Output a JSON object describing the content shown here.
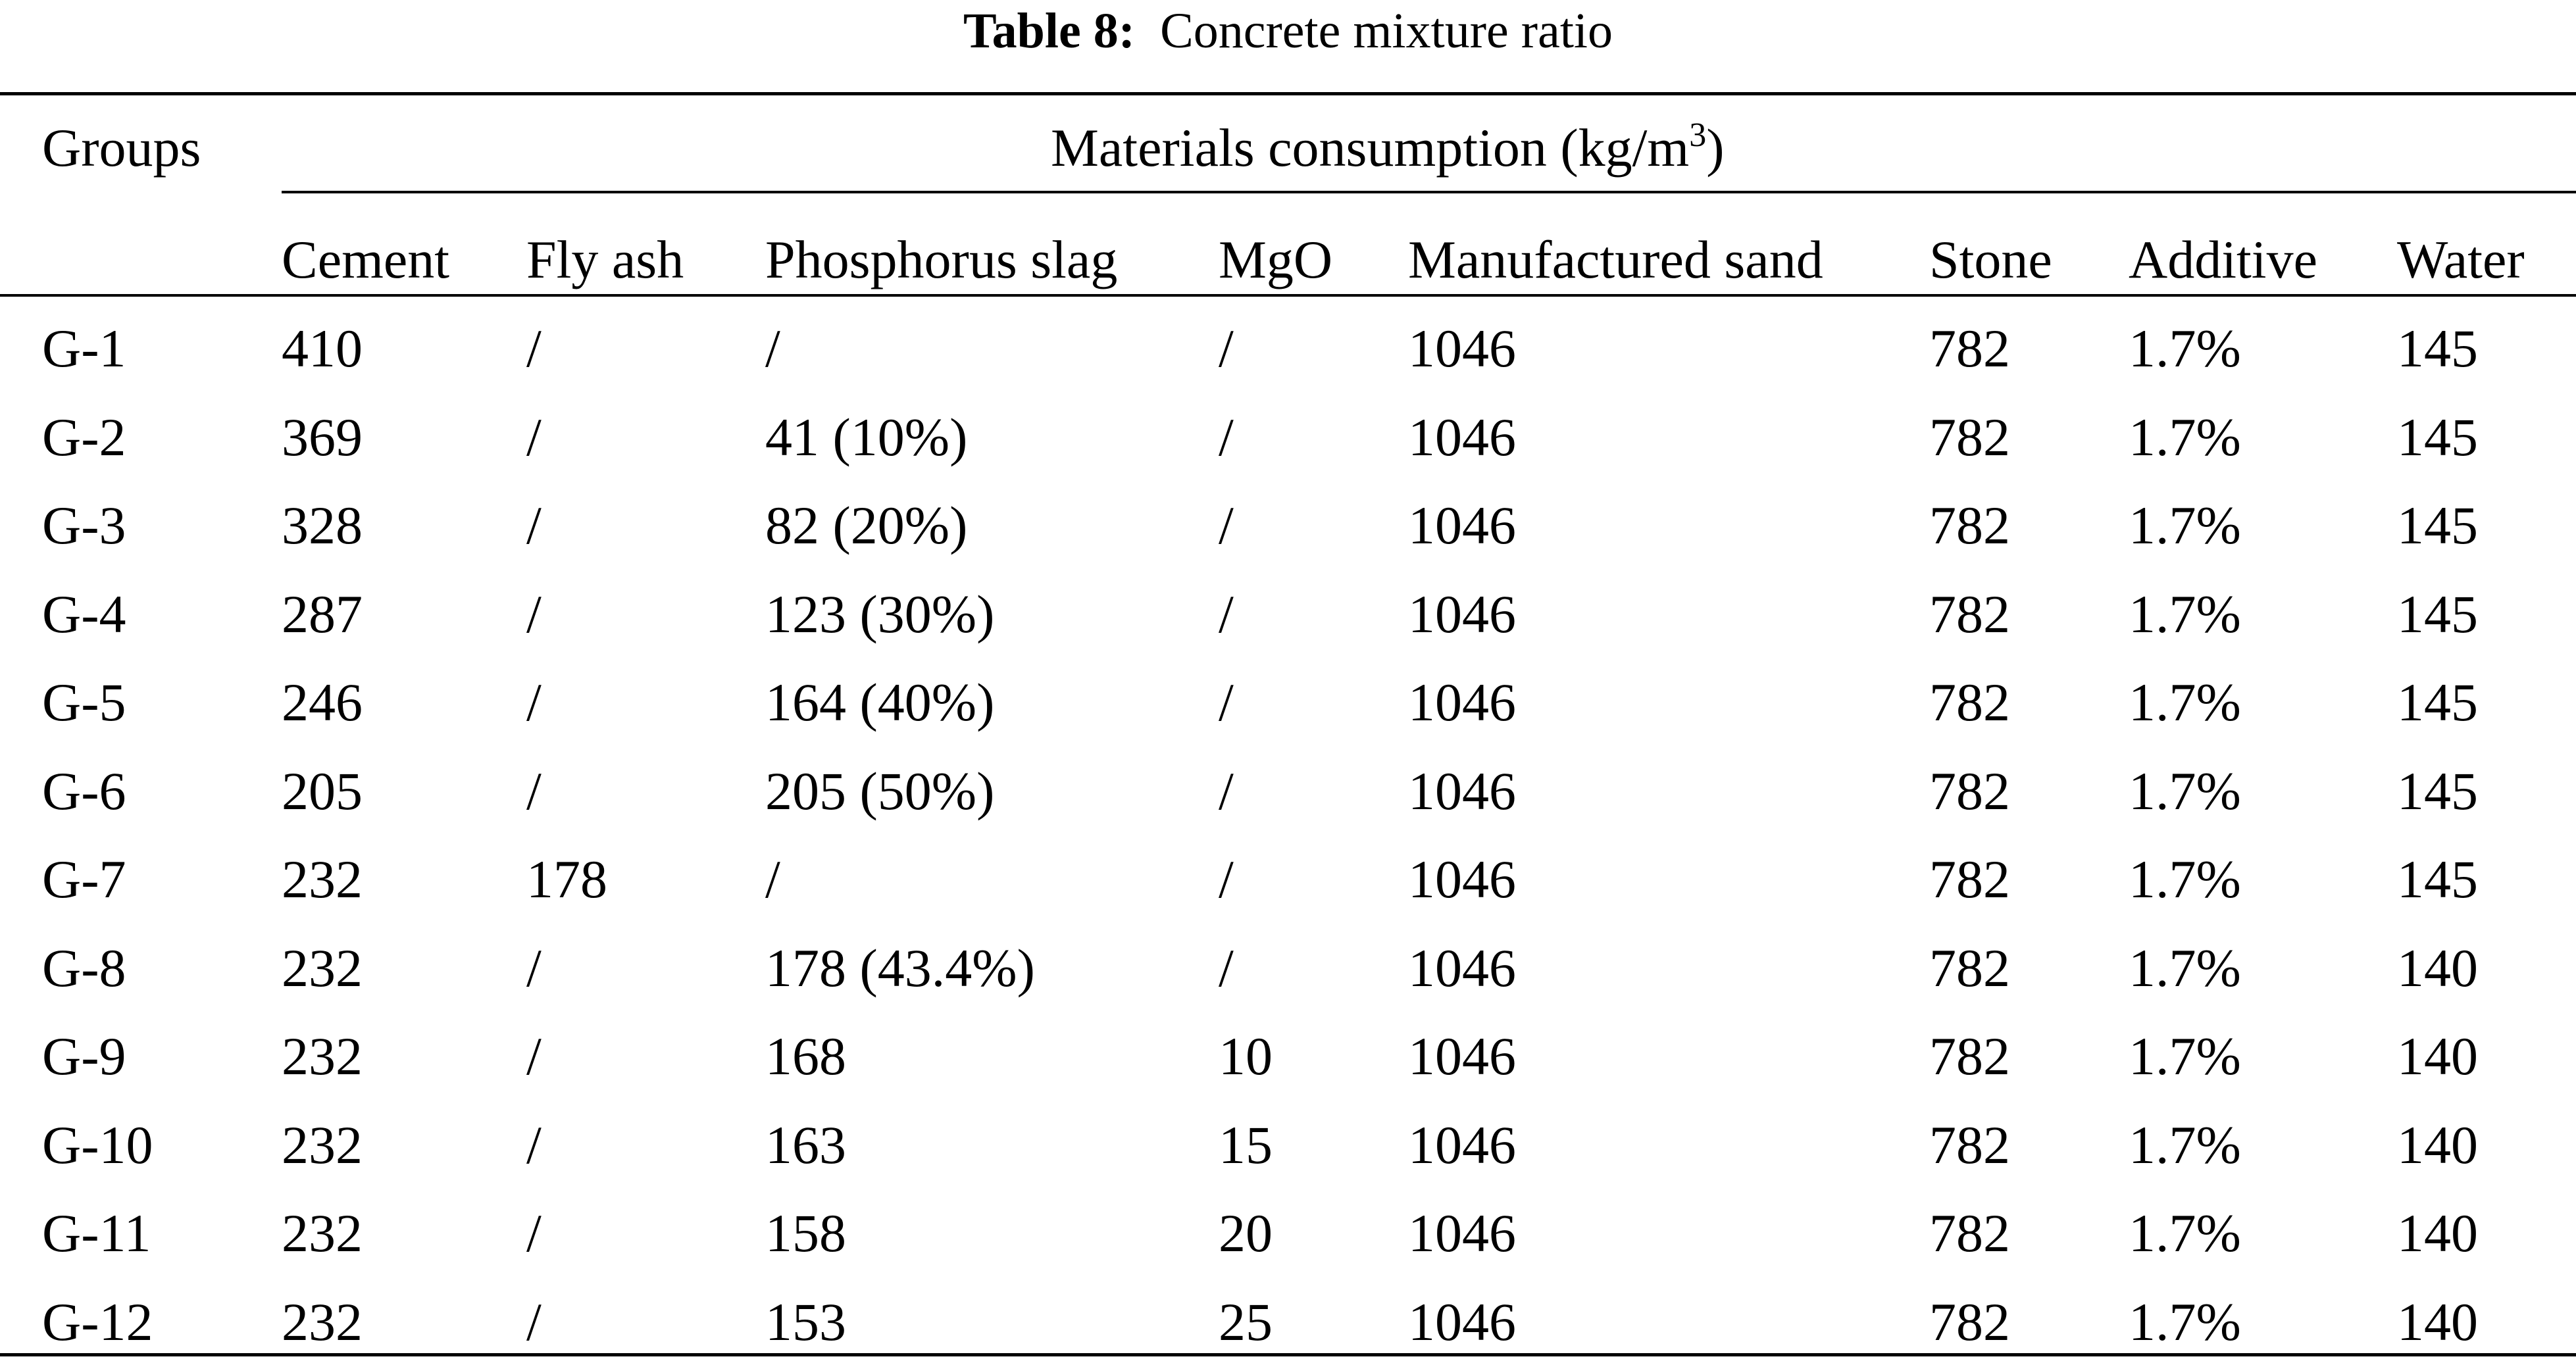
{
  "caption": {
    "label": "Table 8:",
    "title": "Concrete mixture ratio"
  },
  "header": {
    "groups": "Groups",
    "materials_main": "Materials consumption (kg/m",
    "materials_sup": "3",
    "materials_end": ")",
    "columns": [
      "Cement",
      "Fly ash",
      "Phosphorus slag",
      "MgO",
      "Manufactured sand",
      "Stone",
      "Additive",
      "Water"
    ]
  },
  "rows": [
    [
      "G-1",
      "410",
      "/",
      "/",
      "/",
      "1046",
      "782",
      "1.7%",
      "145"
    ],
    [
      "G-2",
      "369",
      "/",
      "41 (10%)",
      "/",
      "1046",
      "782",
      "1.7%",
      "145"
    ],
    [
      "G-3",
      "328",
      "/",
      "82 (20%)",
      "/",
      "1046",
      "782",
      "1.7%",
      "145"
    ],
    [
      "G-4",
      "287",
      "/",
      "123 (30%)",
      "/",
      "1046",
      "782",
      "1.7%",
      "145"
    ],
    [
      "G-5",
      "246",
      "/",
      "164 (40%)",
      "/",
      "1046",
      "782",
      "1.7%",
      "145"
    ],
    [
      "G-6",
      "205",
      "/",
      "205 (50%)",
      "/",
      "1046",
      "782",
      "1.7%",
      "145"
    ],
    [
      "G-7",
      "232",
      "178",
      "/",
      "/",
      "1046",
      "782",
      "1.7%",
      "145"
    ],
    [
      "G-8",
      "232",
      "/",
      "178 (43.4%)",
      "/",
      "1046",
      "782",
      "1.7%",
      "140"
    ],
    [
      "G-9",
      "232",
      "/",
      "168",
      "10",
      "1046",
      "782",
      "1.7%",
      "140"
    ],
    [
      "G-10",
      "232",
      "/",
      "163",
      "15",
      "1046",
      "782",
      "1.7%",
      "140"
    ],
    [
      "G-11",
      "232",
      "/",
      "158",
      "20",
      "1046",
      "782",
      "1.7%",
      "140"
    ],
    [
      "G-12",
      "232",
      "/",
      "153",
      "25",
      "1046",
      "782",
      "1.7%",
      "140"
    ]
  ]
}
